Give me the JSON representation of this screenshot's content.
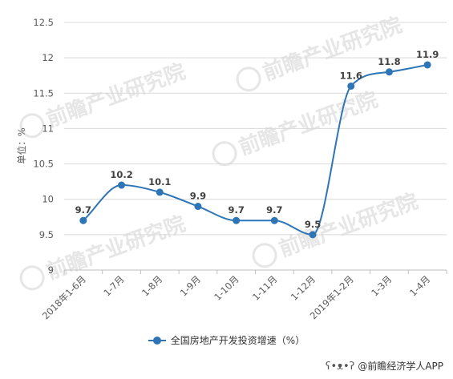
{
  "colors": {
    "line": "#2e75b6",
    "grid": "#d9d9d9",
    "axis": "#bfbfbf",
    "watermark": "#e6e6e6"
  },
  "watermark": {
    "text": "前瞻产业研究院"
  },
  "chart_data": {
    "type": "line",
    "categories": [
      "2018年1-6月",
      "1-7月",
      "1-8月",
      "1-9月",
      "1-10月",
      "1-11月",
      "1-12月",
      "2019年1-2月",
      "1-3月",
      "1-4月"
    ],
    "series": [
      {
        "name": "全国房地产开发投资增速（%）",
        "values": [
          9.7,
          10.2,
          10.1,
          9.9,
          9.7,
          9.7,
          9.5,
          11.6,
          11.8,
          11.9
        ]
      }
    ],
    "data_labels": [
      "9.7",
      "10.2",
      "10.1",
      "9.9",
      "9.7",
      "9.7",
      "9.5",
      "11.6",
      "11.8",
      "11.9"
    ],
    "ylabel": "单位：%",
    "ylim": [
      9,
      12.5
    ],
    "yticks": [
      9,
      9.5,
      10,
      10.5,
      11,
      11.5,
      12,
      12.5
    ],
    "ytick_labels": [
      "9",
      "9.5",
      "10",
      "10.5",
      "11",
      "11.5",
      "12",
      "12.5"
    ],
    "grid": true,
    "smooth": true,
    "legend_position": "bottom-center"
  },
  "legend": {
    "label": "全国房地产开发投资增速（%）"
  },
  "credit": {
    "icon": "bear-icon",
    "text": "@前瞻经济学人APP"
  }
}
